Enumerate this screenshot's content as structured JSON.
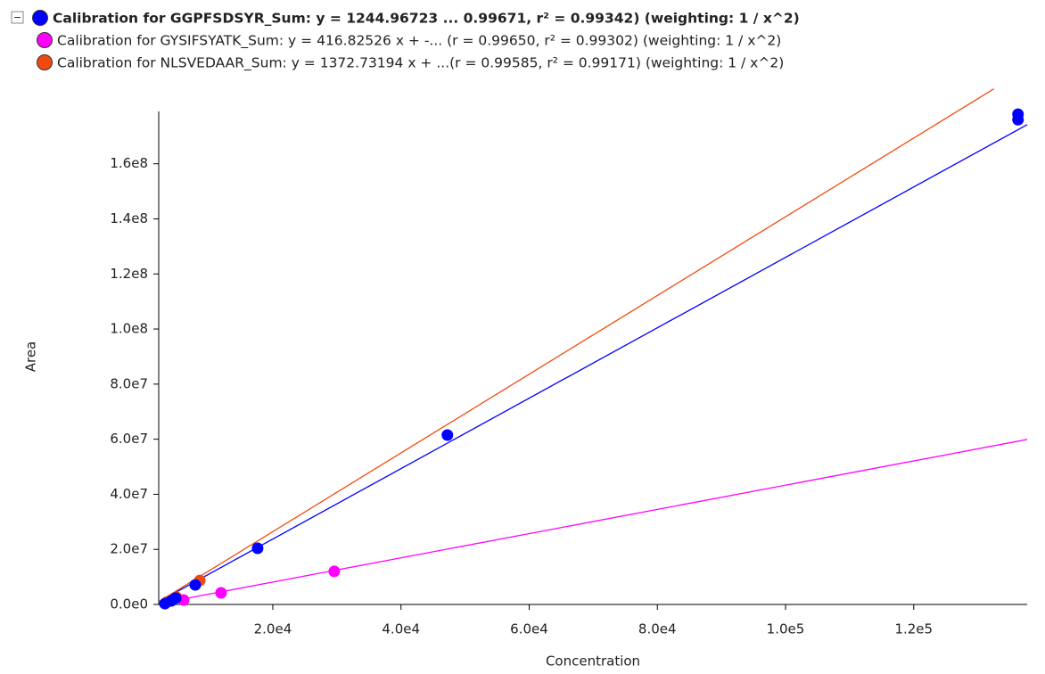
{
  "chart_data": {
    "type": "scatter",
    "xlabel": "Concentration",
    "ylabel": "Area",
    "xlim": [
      2200,
      137700
    ],
    "ylim": [
      0,
      179000000
    ],
    "xticks": [
      {
        "value": 20000,
        "label": "2.0e4"
      },
      {
        "value": 40000,
        "label": "4.0e4"
      },
      {
        "value": 60000,
        "label": "6.0e4"
      },
      {
        "value": 80000,
        "label": "8.0e4"
      },
      {
        "value": 100000,
        "label": "1.0e5"
      },
      {
        "value": 120000,
        "label": "1.2e5"
      }
    ],
    "yticks": [
      {
        "value": 0,
        "label": "0.0e0"
      },
      {
        "value": 20000000,
        "label": "2.0e7"
      },
      {
        "value": 40000000,
        "label": "4.0e7"
      },
      {
        "value": 60000000,
        "label": "6.0e7"
      },
      {
        "value": 80000000,
        "label": "8.0e7"
      },
      {
        "value": 100000000,
        "label": "1.0e8"
      },
      {
        "value": 120000000,
        "label": "1.2e8"
      },
      {
        "value": 140000000,
        "label": "1.4e8"
      },
      {
        "value": 160000000,
        "label": "1.6e8"
      }
    ],
    "series": [
      {
        "name": "Calibration for GGPFSDSYR_Sum: y = 1244.96723 ... 0.99671, r² = 0.99342)  (weighting: 1 / x^2)",
        "color": "#0000ff",
        "x": [
          3170,
          4150,
          4840,
          7900,
          17630,
          47240,
          136270,
          136270
        ],
        "values": [
          300000,
          1300000,
          2300000,
          7100000,
          20400000,
          61500000,
          178000000,
          176000000
        ],
        "fit_x": [
          2200,
          137700
        ],
        "fit_values": [
          1000000,
          174200000
        ]
      },
      {
        "name": "Calibration for GYSIFSYATK_Sum: y = 416.82526 x + -... (r = 0.99650, r² = 0.99302)  (weighting: 1 / x^2)",
        "color": "#ff00ff",
        "x": [
          6090,
          11930,
          29590
        ],
        "values": [
          1600000,
          4200000,
          12000000
        ],
        "fit_x": [
          2200,
          137700
        ],
        "fit_values": [
          300000,
          59900000
        ]
      },
      {
        "name": "Calibration for NLSVEDAAR_Sum: y = 1372.73194 x + ...(r = 0.99585, r² = 0.99171)  (weighting: 1 / x^2)",
        "color": "#f04a10",
        "x": [
          3500,
          4980,
          8610
        ],
        "values": [
          900000,
          2600000,
          8700000
        ],
        "fit_x": [
          2200,
          132500
        ],
        "fit_values": [
          1000000,
          187200000
        ]
      }
    ]
  }
}
